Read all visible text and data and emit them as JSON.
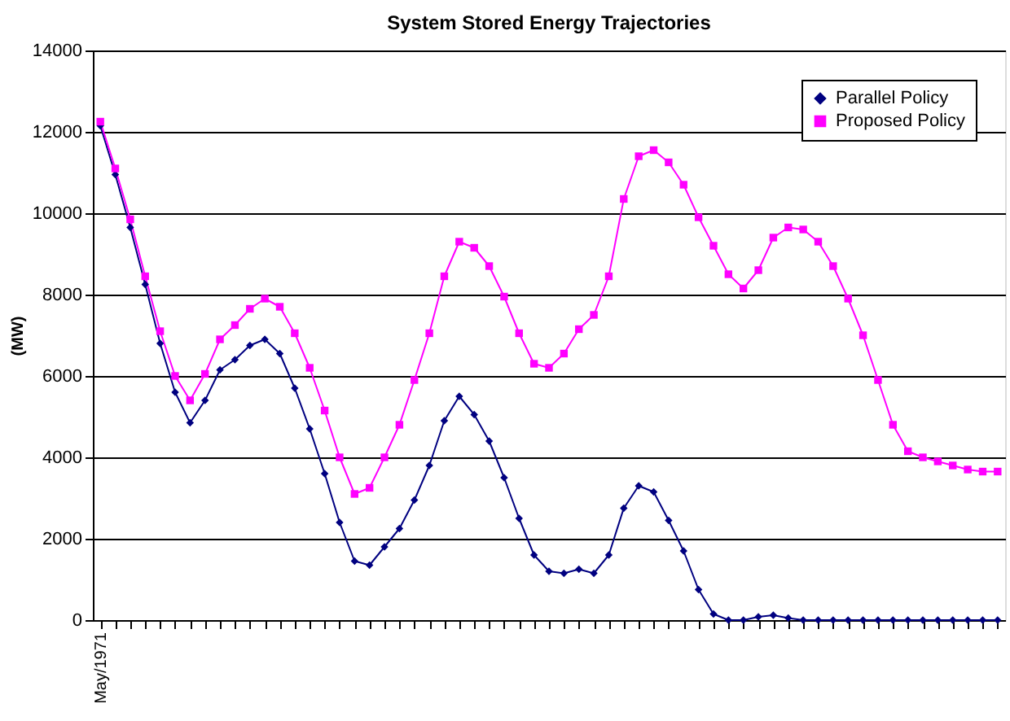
{
  "chart_data": {
    "type": "line",
    "title": "System Stored Energy Trajectories",
    "ylabel": "(MW)",
    "categories": [
      "May/1971",
      null,
      null,
      null,
      null,
      null,
      null,
      null,
      null,
      null,
      null,
      null,
      null,
      null,
      null,
      null,
      null,
      null,
      null,
      null,
      null,
      null,
      null,
      null,
      null,
      null,
      null,
      null,
      null,
      null,
      null,
      null,
      null,
      null,
      null,
      null,
      null,
      null,
      null,
      null,
      null,
      null,
      null,
      null,
      null,
      null,
      null,
      null,
      null,
      null,
      null,
      null,
      null,
      null,
      null,
      null,
      null,
      null,
      null,
      null,
      null
    ],
    "series": [
      {
        "name": "Parallel Policy",
        "color": "#000080",
        "marker": "diamond",
        "values": [
          12150,
          10950,
          9650,
          8250,
          6800,
          5600,
          4850,
          5400,
          6150,
          6400,
          6750,
          6900,
          6550,
          5700,
          4700,
          3600,
          2400,
          1450,
          1350,
          1800,
          2250,
          2950,
          3800,
          4900,
          5500,
          5050,
          4400,
          3500,
          2500,
          1600,
          1200,
          1150,
          1250,
          1150,
          1600,
          2750,
          3300,
          3150,
          2450,
          1700,
          750,
          150,
          0,
          0,
          80,
          120,
          50,
          0,
          0,
          0,
          0,
          0,
          0,
          0,
          0,
          0,
          0,
          0,
          0,
          0,
          0
        ]
      },
      {
        "name": "Proposed Policy",
        "color": "#ff00ff",
        "marker": "square",
        "values": [
          12250,
          11100,
          9850,
          8450,
          7100,
          6000,
          5400,
          6050,
          6900,
          7250,
          7650,
          7900,
          7700,
          7050,
          6200,
          5150,
          4000,
          3100,
          3250,
          4000,
          4800,
          5900,
          7050,
          8450,
          9300,
          9150,
          8700,
          7950,
          7050,
          6300,
          6200,
          6550,
          7150,
          7500,
          8450,
          10350,
          11400,
          11550,
          11250,
          10700,
          9900,
          9200,
          8500,
          8150,
          8600,
          9400,
          9650,
          9600,
          9300,
          8700,
          7900,
          7000,
          5900,
          4800,
          4150,
          4000,
          3900,
          3800,
          3700,
          3650,
          3650
        ]
      }
    ],
    "ylim": [
      0,
      14000
    ],
    "yticks": [
      0,
      2000,
      4000,
      6000,
      8000,
      10000,
      12000,
      14000
    ],
    "grid": "y",
    "legend": "top right",
    "line_style": "solid"
  }
}
